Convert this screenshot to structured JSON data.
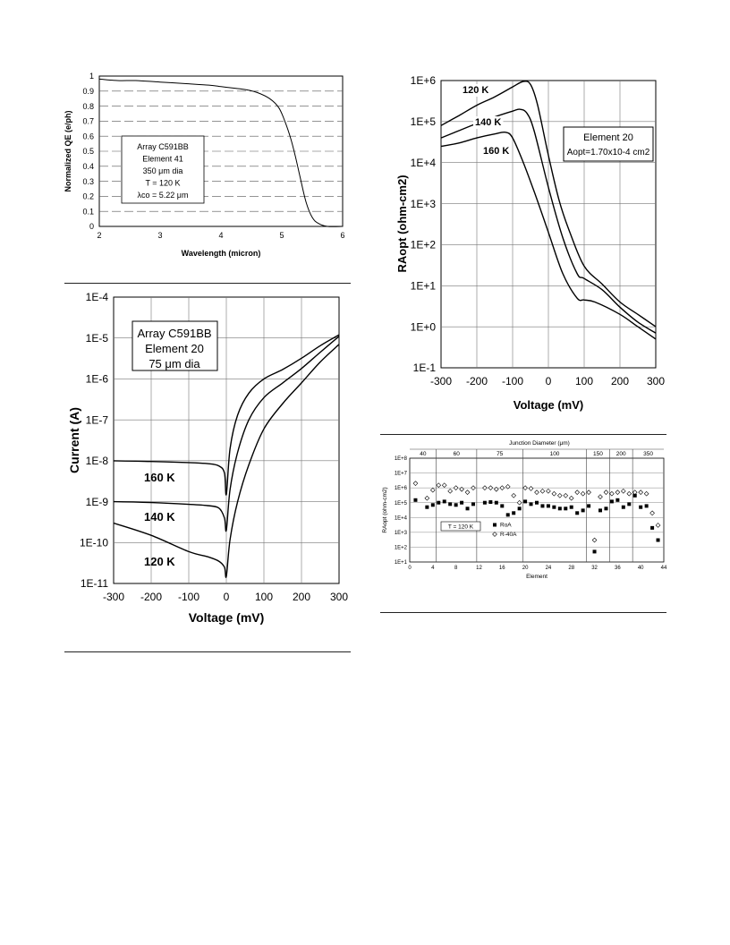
{
  "chart_data": [
    {
      "id": "qe",
      "type": "line",
      "title": "",
      "xlabel": "Wavelength (micron)",
      "ylabel": "Normalized QE (e/ph)",
      "xlim": [
        2,
        6
      ],
      "ylim": [
        0,
        1
      ],
      "xticks": [
        "2",
        "3",
        "4",
        "5",
        "6"
      ],
      "yticks": [
        "0",
        "0.1",
        "0.2",
        "0.3",
        "0.4",
        "0.5",
        "0.6",
        "0.7",
        "0.8",
        "0.9",
        "1"
      ],
      "grid": true,
      "legend": {
        "position": "center-left",
        "lines": [
          "Array C591BB",
          "Element 41",
          "350 μm dia",
          "T = 120 K",
          "λco = 5.22 μm"
        ]
      },
      "series": [
        {
          "x": [
            2.0,
            2.3,
            2.6,
            3.0,
            3.4,
            3.8,
            4.0,
            4.2,
            4.4,
            4.6,
            4.8,
            4.95,
            5.05,
            5.15,
            5.22,
            5.3,
            5.4,
            5.5,
            5.6,
            5.75,
            6.0
          ],
          "y": [
            0.98,
            0.97,
            0.97,
            0.96,
            0.95,
            0.94,
            0.93,
            0.92,
            0.91,
            0.89,
            0.85,
            0.79,
            0.7,
            0.58,
            0.47,
            0.33,
            0.16,
            0.06,
            0.02,
            0.0,
            0.0
          ]
        }
      ]
    },
    {
      "id": "iv",
      "type": "line",
      "title": "",
      "xlabel": "Voltage (mV)",
      "ylabel": "Current (A)",
      "xlim": [
        -300,
        300
      ],
      "ylim_log10": [
        -11,
        -4
      ],
      "log_y": true,
      "xticks": [
        "-300",
        "-200",
        "-100",
        "0",
        "100",
        "200",
        "300"
      ],
      "yticks": [
        "1E-11",
        "1E-10",
        "1E-9",
        "1E-8",
        "1E-7",
        "1E-6",
        "1E-5",
        "1E-4"
      ],
      "grid": true,
      "legend": {
        "position": "top-left",
        "lines": [
          "Array C591BB",
          "Element 20",
          "75 μm dia"
        ]
      },
      "labels": [
        "160 K",
        "140 K",
        "120 K"
      ],
      "series": [
        {
          "label": "160 K",
          "x": [
            -300,
            -200,
            -100,
            -50,
            -20,
            -5,
            0,
            10,
            30,
            60,
            100,
            150,
            200,
            250,
            300
          ],
          "y": [
            1e-08,
            9.6e-09,
            9e-09,
            8.5e-09,
            7.5e-09,
            5e-09,
            1.5e-09,
            2e-08,
            1.3e-07,
            4.5e-07,
            1e-06,
            1.7e-06,
            3.2e-06,
            6.5e-06,
            1.2e-05
          ]
        },
        {
          "label": "140 K",
          "x": [
            -300,
            -200,
            -100,
            -50,
            -20,
            -5,
            0,
            10,
            30,
            60,
            100,
            150,
            200,
            250,
            300
          ],
          "y": [
            1e-09,
            9.5e-10,
            8.6e-10,
            8e-10,
            7e-10,
            4e-10,
            2e-10,
            2e-09,
            1.6e-08,
            1e-07,
            3.5e-07,
            8e-07,
            1.8e-06,
            4.5e-06,
            1.1e-05
          ]
        },
        {
          "label": "120 K",
          "x": [
            -300,
            -200,
            -100,
            -50,
            -20,
            -5,
            0,
            10,
            30,
            60,
            100,
            150,
            200,
            250,
            300
          ],
          "y": [
            3e-10,
            1.5e-10,
            6e-11,
            4.5e-11,
            3.5e-11,
            2.5e-11,
            1.5e-11,
            1.2e-10,
            1e-09,
            8e-09,
            6e-08,
            2.5e-07,
            8e-07,
            2.6e-06,
            7e-06
          ]
        }
      ]
    },
    {
      "id": "ra",
      "type": "line",
      "title": "",
      "xlabel": "Voltage (mV)",
      "ylabel": "RAopt (ohm-cm2)",
      "xlim": [
        -300,
        300
      ],
      "ylim_log10": [
        -1,
        6
      ],
      "log_y": true,
      "xticks": [
        "-300",
        "-200",
        "-100",
        "0",
        "100",
        "200",
        "300"
      ],
      "yticks": [
        "1E-1",
        "1E+0",
        "1E+1",
        "1E+2",
        "1E+3",
        "1E+4",
        "1E+5",
        "1E+6"
      ],
      "grid": true,
      "legend": {
        "position": "top-right",
        "lines": [
          "Element 20",
          "Aopt=1.70x10-4 cm2"
        ]
      },
      "labels": [
        "120 K",
        "140 K",
        "160 K"
      ],
      "series": [
        {
          "label": "120 K",
          "x": [
            -300,
            -250,
            -200,
            -150,
            -100,
            -70,
            -50,
            -30,
            0,
            30,
            60,
            100,
            150,
            200,
            250,
            300
          ],
          "y": [
            80000,
            140000,
            250000,
            400000,
            700000,
            950000,
            800000,
            250000,
            15000,
            1200,
            200,
            30,
            11,
            4,
            2,
            1
          ]
        },
        {
          "label": "140 K",
          "x": [
            -300,
            -250,
            -200,
            -150,
            -100,
            -80,
            -60,
            -40,
            0,
            40,
            80,
            100,
            150,
            200,
            250,
            300
          ],
          "y": [
            40000,
            60000,
            90000,
            130000,
            180000,
            200000,
            160000,
            60000,
            2500,
            150,
            20,
            15,
            8,
            3,
            1.3,
            0.7
          ]
        },
        {
          "label": "160 K",
          "x": [
            -300,
            -250,
            -200,
            -150,
            -120,
            -100,
            -70,
            -40,
            0,
            40,
            80,
            100,
            130,
            200,
            250,
            300
          ],
          "y": [
            25000,
            30000,
            40000,
            50000,
            55000,
            40000,
            10000,
            2000,
            200,
            20,
            5,
            4.5,
            4,
            2,
            1,
            0.5
          ]
        }
      ]
    },
    {
      "id": "ro",
      "type": "scatter",
      "title": "Junction Diameter (μm)",
      "xlabel": "Element",
      "ylabel": "RAopt (ohm-cm2)",
      "xlim": [
        0,
        44
      ],
      "ylim_log10": [
        1,
        8
      ],
      "log_y": true,
      "xticks": [
        "0",
        "4",
        "8",
        "12",
        "16",
        "20",
        "24",
        "28",
        "32",
        "36",
        "40",
        "44"
      ],
      "yticks": [
        "1E+1",
        "1E+2",
        "1E+3",
        "1E+4",
        "1E+5",
        "1E+6",
        "1E+7",
        "1E+8"
      ],
      "grid": true,
      "diameters": [
        "40",
        "60",
        "75",
        "100",
        "150",
        "200",
        "350"
      ],
      "legend": {
        "position": "bottom-left",
        "items": [
          "T = 120 K",
          "RoA",
          "R-40A"
        ]
      },
      "series": [
        {
          "name": "RoA",
          "marker": "square",
          "x": [
            1,
            3,
            4,
            5,
            6,
            7,
            8,
            9,
            10,
            11,
            13,
            14,
            15,
            16,
            17,
            18,
            19,
            20,
            21,
            22,
            23,
            24,
            25,
            26,
            27,
            28,
            29,
            30,
            31,
            32,
            33,
            34,
            35,
            36,
            37,
            38,
            39,
            40,
            41,
            42,
            43
          ],
          "y": [
            150000,
            50000,
            70000,
            100000,
            120000,
            80000,
            70000,
            100000,
            40000,
            80000,
            100000,
            110000,
            100000,
            60000,
            15000,
            20000,
            40000,
            120000,
            80000,
            100000,
            60000,
            60000,
            50000,
            40000,
            40000,
            50000,
            20000,
            30000,
            60000,
            50,
            30000,
            40000,
            120000,
            150000,
            50000,
            80000,
            300000,
            50000,
            60000,
            2000,
            300
          ]
        },
        {
          "name": "R-40A",
          "marker": "diamond",
          "x": [
            1,
            3,
            4,
            5,
            6,
            7,
            8,
            9,
            10,
            11,
            13,
            14,
            15,
            16,
            17,
            18,
            19,
            20,
            21,
            22,
            23,
            24,
            25,
            26,
            27,
            28,
            29,
            30,
            31,
            32,
            33,
            34,
            35,
            36,
            37,
            38,
            39,
            40,
            41,
            42,
            43
          ],
          "y": [
            2000000,
            200000,
            700000,
            1500000,
            1500000,
            600000,
            1000000,
            800000,
            500000,
            1000000,
            1000000,
            1000000,
            800000,
            1000000,
            1200000,
            300000,
            100000,
            1000000,
            900000,
            500000,
            600000,
            600000,
            400000,
            300000,
            300000,
            200000,
            500000,
            400000,
            500000,
            300,
            250000,
            500000,
            400000,
            500000,
            600000,
            400000,
            500000,
            500000,
            400000,
            20000,
            3000
          ]
        }
      ]
    }
  ]
}
